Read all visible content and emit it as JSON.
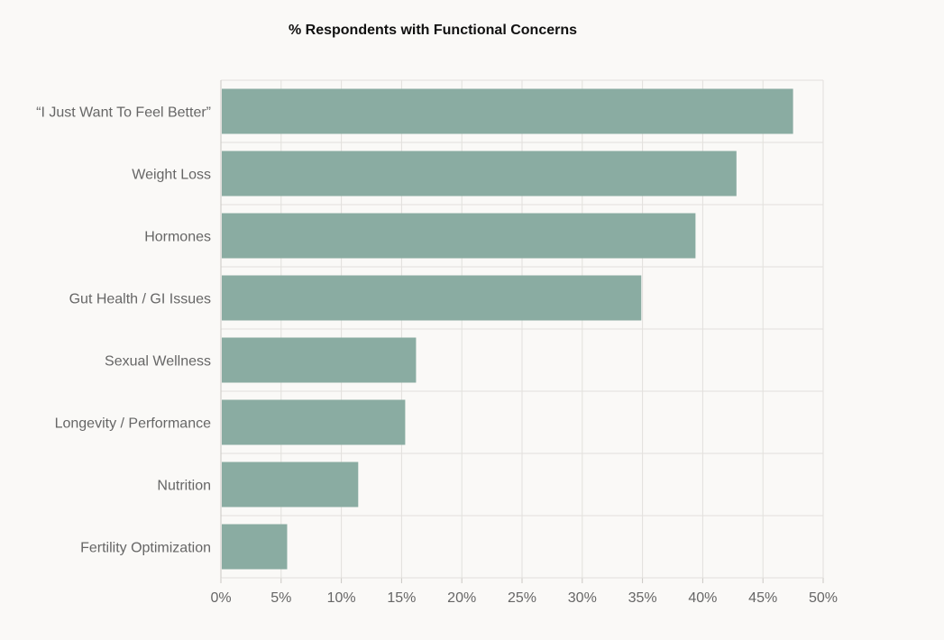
{
  "chart_data": {
    "type": "bar",
    "orientation": "horizontal",
    "title": "% Respondents with Functional Concerns",
    "xlabel": "",
    "ylabel": "",
    "categories": [
      "“I Just Want To Feel Better”",
      "Weight Loss",
      "Hormones",
      "Gut Health / GI Issues",
      "Sexual Wellness",
      "Longevity / Performance",
      "Nutrition",
      "Fertility Optimization"
    ],
    "values": [
      47.5,
      42.8,
      39.4,
      34.9,
      16.2,
      15.3,
      11.4,
      5.5
    ],
    "xlim": [
      0,
      50
    ],
    "xticks": [
      0,
      5,
      10,
      15,
      20,
      25,
      30,
      35,
      40,
      45,
      50
    ],
    "tick_format": "{v}%",
    "grid": true,
    "legend": "none",
    "colors": {
      "bar": "#8aaca2",
      "grid": "#e2e0dc",
      "axis": "#c9c7c3",
      "label": "#666666",
      "title": "#111111",
      "background": "#faf9f7"
    }
  }
}
